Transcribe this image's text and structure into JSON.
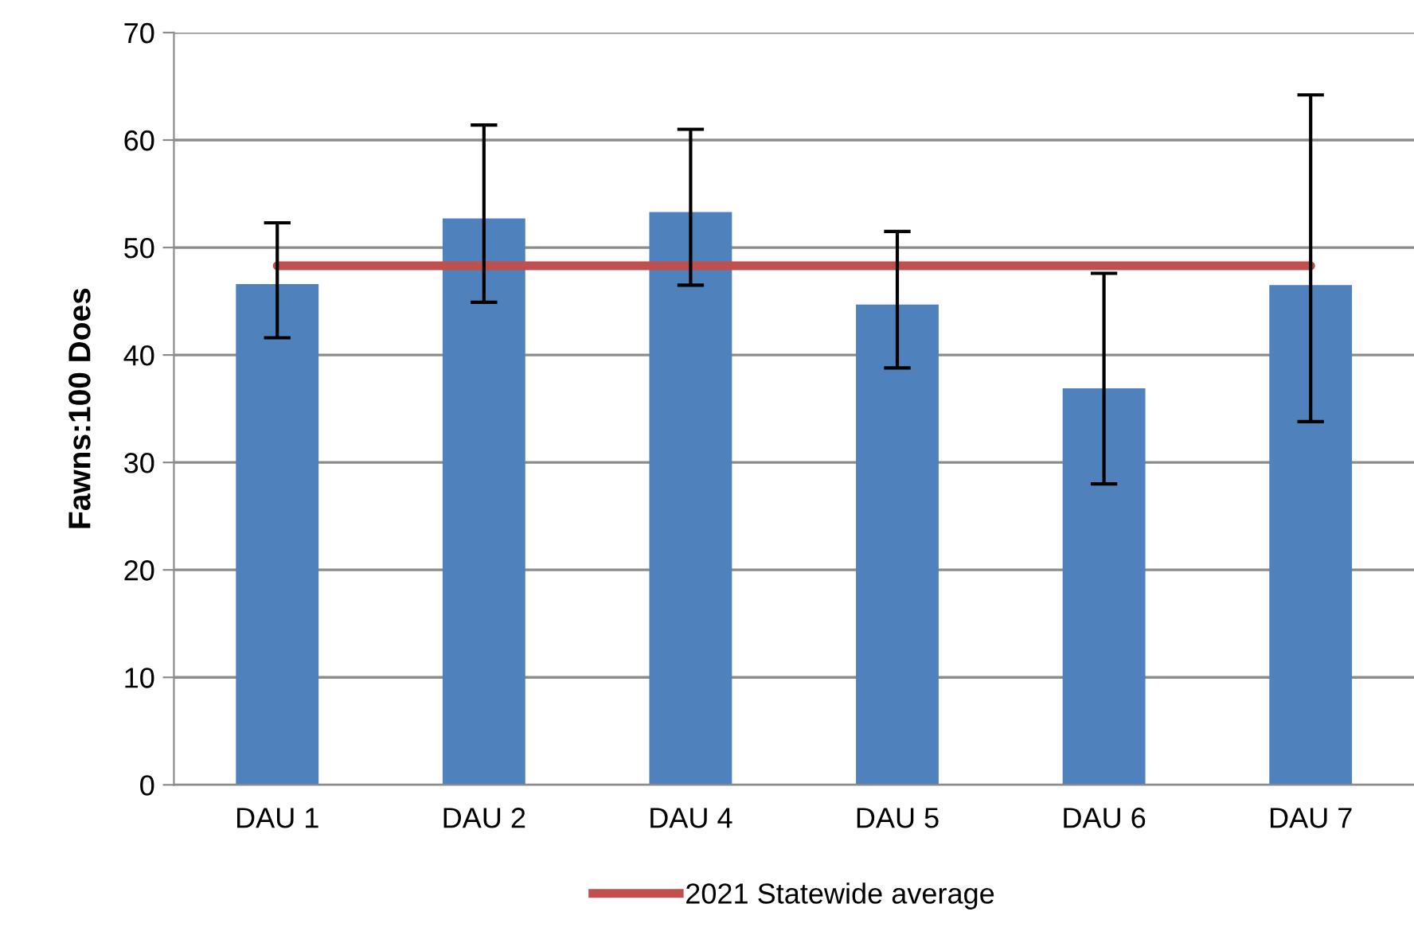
{
  "chart_data": {
    "type": "bar",
    "ylabel": "Fawns:100 Does",
    "categories": [
      "DAU 1",
      "DAU 2",
      "DAU 4",
      "DAU 5",
      "DAU 6",
      "DAU 7"
    ],
    "series": [
      {
        "color": "#4f81bd",
        "values": [
          46.6,
          52.7,
          53.3,
          44.7,
          36.9,
          46.5
        ],
        "errors": [
          [
            41.6,
            52.3
          ],
          [
            44.9,
            61.4
          ],
          [
            46.5,
            61.0
          ],
          [
            38.8,
            51.5
          ],
          [
            28.0,
            47.6
          ],
          [
            33.8,
            64.2
          ]
        ]
      },
      {
        "type": "line",
        "name": "2021 Statewide average",
        "color": "#c0504d",
        "values": [
          48.3,
          48.3,
          48.3,
          48.3,
          48.3,
          48.3
        ]
      }
    ],
    "ylim": [
      0,
      70
    ],
    "yticks": [
      0,
      10,
      20,
      30,
      40,
      50,
      60,
      70
    ],
    "grid": "y",
    "legend": "bottom"
  }
}
